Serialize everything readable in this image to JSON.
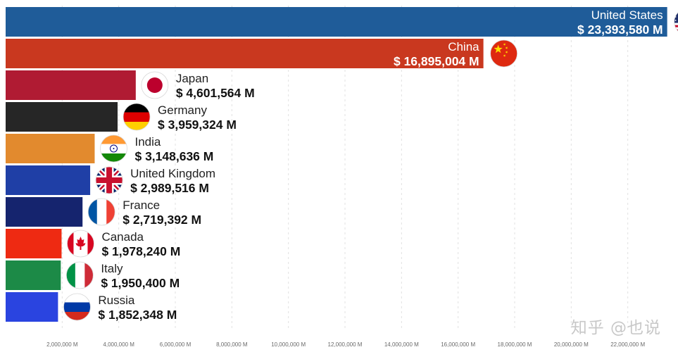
{
  "watermark": "知乎 @也说",
  "chart_data": {
    "type": "bar",
    "orientation": "horizontal",
    "value_prefix": "$ ",
    "value_suffix": " M",
    "xlim": [
      0,
      24000000
    ],
    "x_ticks": [
      2000000,
      4000000,
      6000000,
      8000000,
      10000000,
      12000000,
      14000000,
      16000000,
      18000000,
      20000000,
      22000000
    ],
    "tick_suffix": " M",
    "grid": "vertical dashed",
    "categories": [
      "United States",
      "China",
      "Japan",
      "Germany",
      "India",
      "United Kingdom",
      "France",
      "Canada",
      "Italy",
      "Russia"
    ],
    "values": [
      23393580,
      16895004,
      4601564,
      3959324,
      3148636,
      2989516,
      2719392,
      1978240,
      1950400,
      1852348
    ],
    "colors": [
      "#1f5c99",
      "#c9381f",
      "#b01b33",
      "#262626",
      "#e28a2e",
      "#1f3fa6",
      "#15246e",
      "#ee2a12",
      "#1c8a47",
      "#2a44e0"
    ],
    "flags": [
      "us-flag",
      "china-flag",
      "japan-flag",
      "germany-flag",
      "india-flag",
      "uk-flag",
      "france-flag",
      "canada-flag",
      "italy-flag",
      "russia-flag"
    ]
  }
}
